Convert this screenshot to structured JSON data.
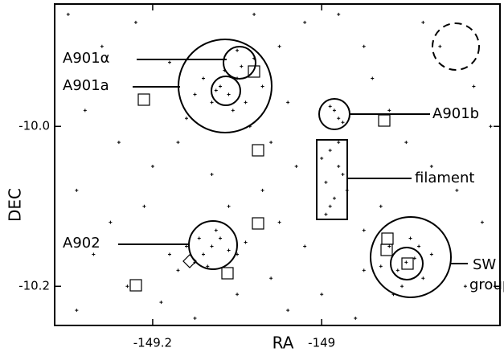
{
  "chart_data": {
    "type": "scatter",
    "xlabel": "RA",
    "ylabel": "DEC",
    "xlim": [
      -149.316,
      -148.789
    ],
    "ylim": [
      -10.249,
      -9.847
    ],
    "xticks": [
      -149.2,
      -149.0
    ],
    "yticks": [
      {
        "value": -10.0,
        "label": "-10.0"
      },
      -10.2
    ],
    "color": "#000000",
    "annotations": [
      "A901α",
      "A901a",
      "A901b",
      "filament",
      "A902",
      "SW",
      "group"
    ],
    "x": [
      -149.12,
      -149.11,
      -149.1,
      -149.13,
      -149.115,
      -149.09,
      -149.14,
      -149.105,
      -149.125,
      -149.095,
      -149.08,
      -149.1,
      -149.15,
      -149.16,
      -149.07,
      -149.085,
      -149.13,
      -149.14,
      -149.12,
      -149.11,
      -149.15,
      -149.125,
      -149.1,
      -149.16,
      -149.135,
      -149.145,
      -149.17,
      -149.09,
      -149.18,
      -148.99,
      -148.98,
      -148.995,
      -148.985,
      -148.975,
      -148.99,
      -149.0,
      -148.98,
      -148.97,
      -148.995,
      -148.985,
      -148.98,
      -148.99,
      -148.975,
      -148.9,
      -148.91,
      -148.89,
      -148.92,
      -148.88,
      -148.905,
      -148.895,
      -148.93,
      -148.87,
      -148.915,
      -148.885,
      -149.3,
      -149.26,
      -149.22,
      -149.18,
      -149.28,
      -149.24,
      -149.2,
      -149.29,
      -149.25,
      -149.21,
      -149.27,
      -149.23,
      -149.29,
      -149.19,
      -149.15,
      -149.1,
      -149.06,
      -149.04,
      -149.0,
      -148.96,
      -148.95,
      -149.05,
      -149.07,
      -149.03,
      -149.06,
      -149.04,
      -149.05,
      -149.02,
      -148.98,
      -148.95,
      -148.94,
      -148.92,
      -148.9,
      -148.87,
      -148.84,
      -148.81,
      -148.83,
      -148.8,
      -148.82,
      -148.86,
      -148.88,
      -148.93,
      -148.95,
      -149.08,
      -149.13,
      -149.17,
      -149.11,
      -149.02
    ],
    "values": [
      -9.95,
      -9.96,
      -9.94,
      -9.97,
      -9.93,
      -9.97,
      -9.94,
      -9.98,
      -9.955,
      -9.925,
      -9.915,
      -9.905,
      -9.96,
      -9.99,
      -9.95,
      -10.0,
      -10.15,
      -10.16,
      -10.14,
      -10.155,
      -10.17,
      -10.13,
      -10.16,
      -10.15,
      -10.175,
      -10.14,
      -10.18,
      -10.145,
      -10.16,
      -10.03,
      -10.05,
      -10.07,
      -10.09,
      -10.06,
      -10.1,
      -10.04,
      -10.02,
      -10.08,
      -10.11,
      -9.98,
      -9.99,
      -9.975,
      -9.995,
      -10.17,
      -10.18,
      -10.165,
      -10.15,
      -10.19,
      -10.2,
      -10.14,
      -10.175,
      -10.16,
      -10.21,
      -10.15,
      -9.86,
      -9.9,
      -9.87,
      -9.92,
      -9.98,
      -10.02,
      -10.05,
      -10.08,
      -10.12,
      -10.1,
      -10.16,
      -10.2,
      -10.23,
      -10.22,
      -10.24,
      -10.21,
      -10.19,
      -10.23,
      -10.21,
      -10.24,
      -10.18,
      -10.12,
      -10.08,
      -10.05,
      -10.02,
      -9.97,
      -9.9,
      -9.87,
      -9.86,
      -9.9,
      -9.94,
      -9.98,
      -10.02,
      -10.05,
      -10.08,
      -10.12,
      -10.2,
      -10.0,
      -9.95,
      -9.9,
      -9.87,
      -10.1,
      -10.13,
      -9.86,
      -10.06,
      -10.02,
      -10.1,
      -10.15
    ]
  }
}
